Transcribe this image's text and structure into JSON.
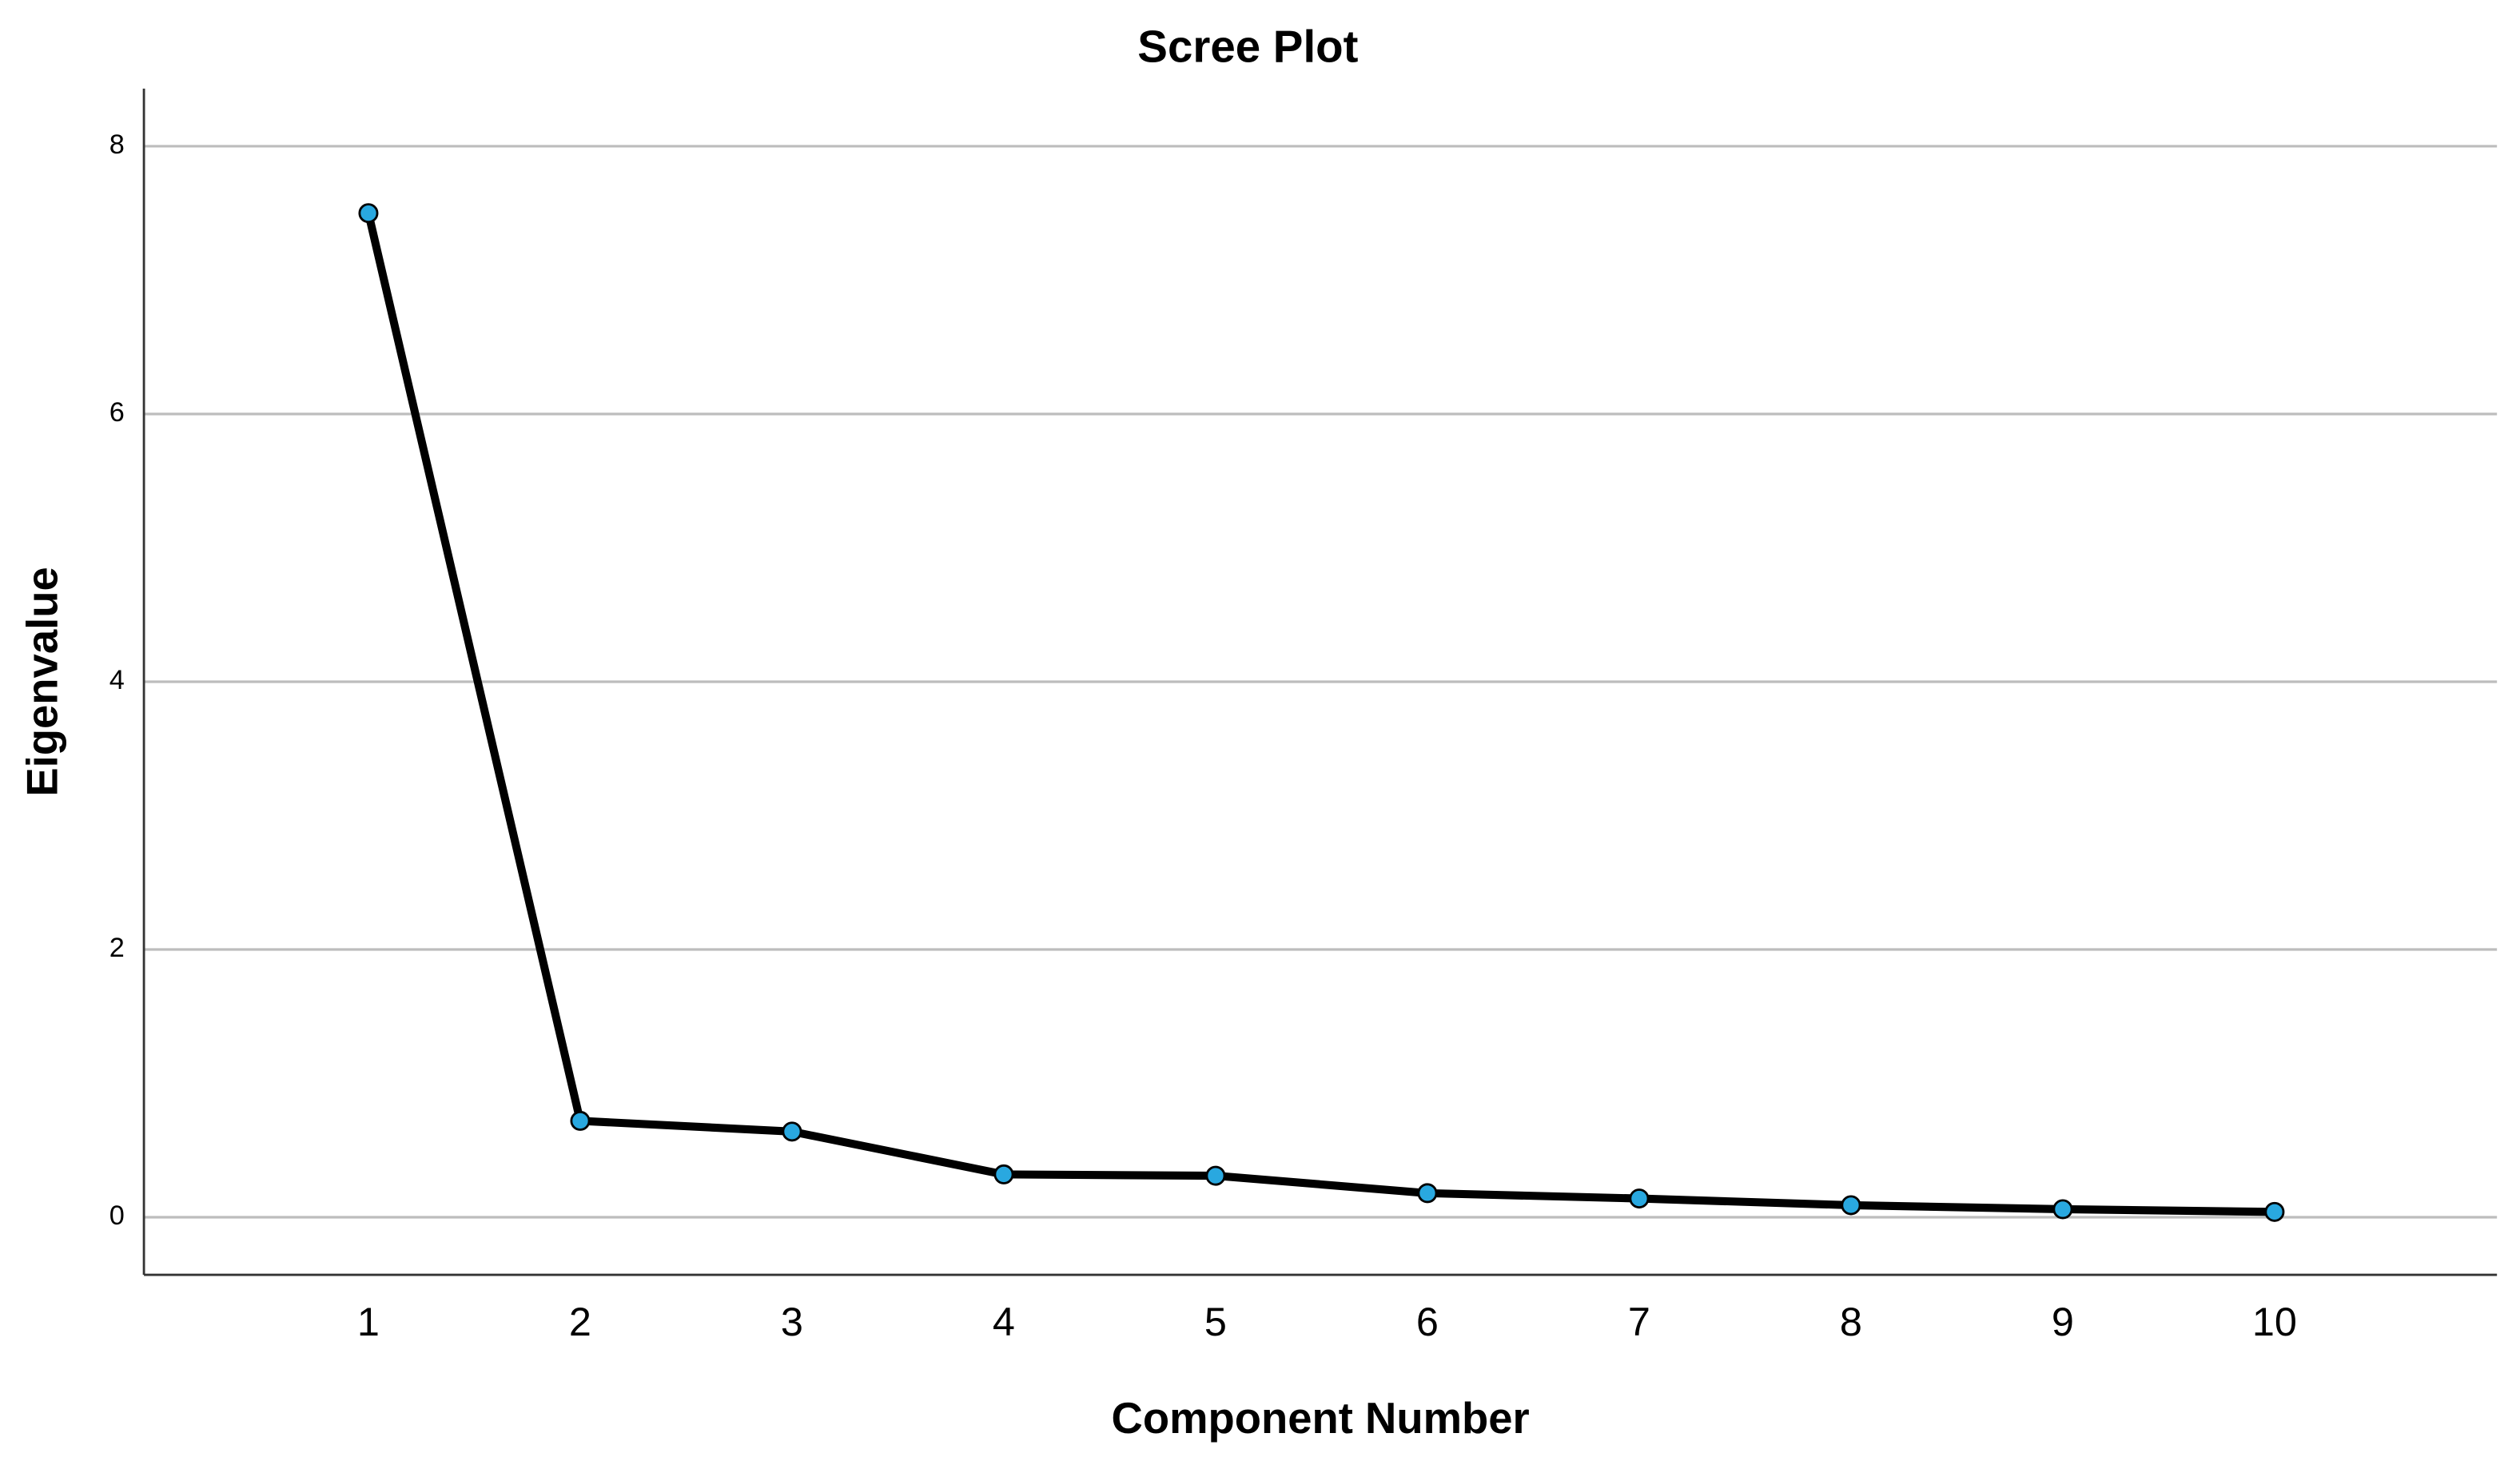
{
  "chart_data": {
    "type": "line",
    "title": "Scree Plot",
    "x_label": "Component Number",
    "y_label": "Eigenvalue",
    "x": [
      1,
      2,
      3,
      4,
      5,
      6,
      7,
      8,
      9,
      10
    ],
    "series": [
      {
        "name": "Eigenvalue",
        "color": "#000000",
        "marker_color": "#29a8e0",
        "values": [
          7.5,
          0.72,
          0.64,
          0.32,
          0.31,
          0.18,
          0.14,
          0.09,
          0.06,
          0.04
        ]
      }
    ],
    "xlim": [
      -0.06,
      11.05
    ],
    "xticks": [
      1,
      2,
      3,
      4,
      5,
      6,
      7,
      8,
      9,
      10
    ],
    "ylim": [
      -0.43,
      8.43
    ],
    "yticks": [
      0,
      2,
      4,
      6,
      8
    ],
    "grid": true
  }
}
